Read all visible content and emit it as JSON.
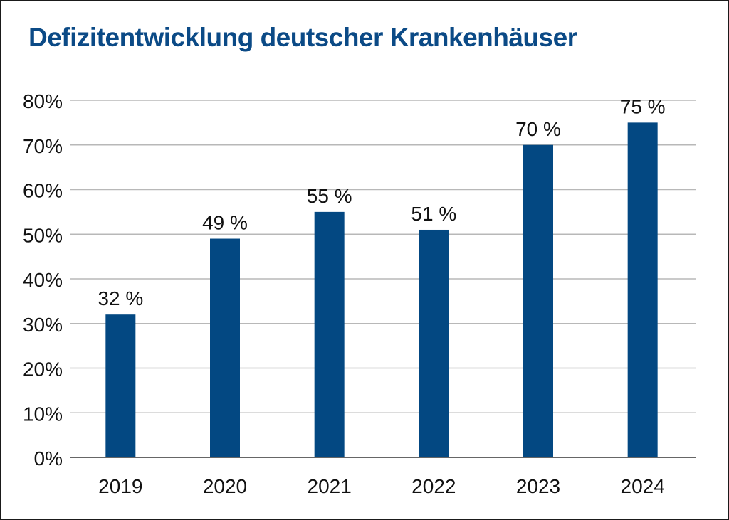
{
  "chart_data": {
    "type": "bar",
    "title": "Defizitentwicklung deutscher Krankenhäuser",
    "categories": [
      "2019",
      "2020",
      "2021",
      "2022",
      "2023",
      "2024"
    ],
    "values": [
      32,
      49,
      55,
      51,
      70,
      75
    ],
    "data_labels": [
      "32 %",
      "49 %",
      "55 %",
      "51 %",
      "70 %",
      "75 %"
    ],
    "y_ticks": [
      "0%",
      "10%",
      "20%",
      "30%",
      "40%",
      "50%",
      "60%",
      "70%",
      "80%"
    ],
    "ylim": [
      0,
      80
    ],
    "xlabel": "",
    "ylabel": "",
    "grid": true,
    "legend": "none",
    "bar_color": "#034882",
    "title_color": "#0b4a86"
  }
}
